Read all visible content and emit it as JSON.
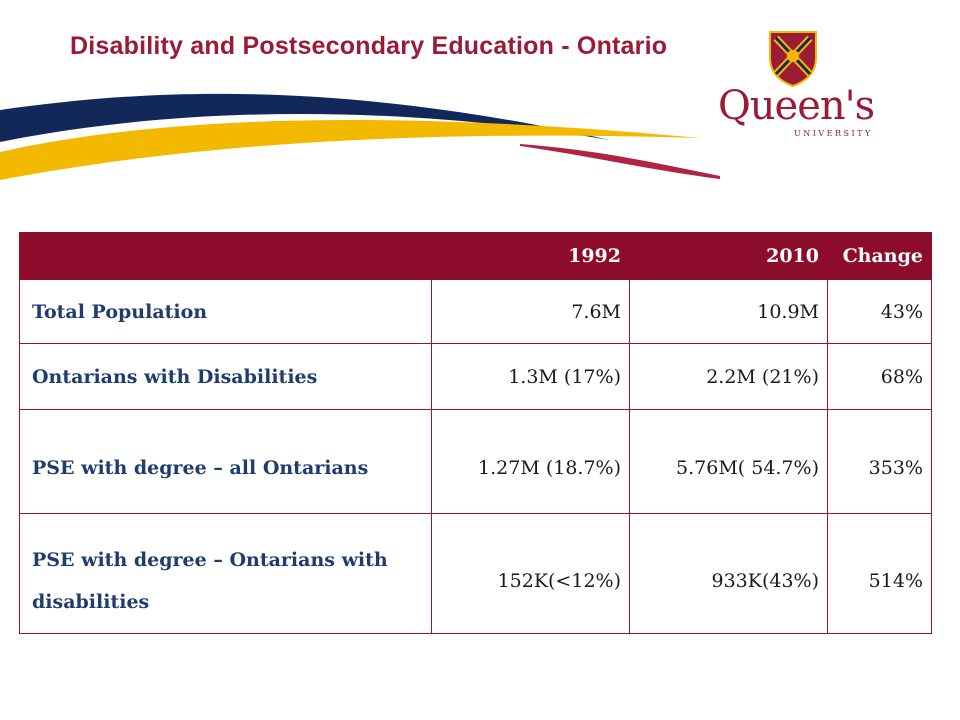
{
  "slide": {
    "title": "Disability and Postsecondary Education - Ontario"
  },
  "logo": {
    "wordmark": "Queen's",
    "subtext": "UNIVERSITY",
    "colors": {
      "red": "#9b1b36",
      "gold": "#f2b900",
      "navy": "#12275a"
    }
  },
  "swoosh_colors": {
    "navy": "#12275a",
    "gold": "#f2b900",
    "red": "#b22242"
  },
  "table": {
    "header": [
      "",
      "1992",
      "2010",
      "Change"
    ],
    "rows": [
      {
        "label": "Total Population",
        "v1992": "7.6M",
        "v2010": "10.9M",
        "change": "43%"
      },
      {
        "label": "Ontarians with Disabilities",
        "v1992": "1.3M (17%)",
        "v2010": "2.2M (21%)",
        "change": "68%"
      },
      {
        "label": "PSE with degree – all Ontarians",
        "v1992": "1.27M (18.7%)",
        "v2010": "5.76M( 54.7%)",
        "change": "353%"
      },
      {
        "label": "PSE with degree – Ontarians with disabilities",
        "v1992": "152K(<12%)",
        "v2010": "933K(43%)",
        "change": "514%"
      }
    ]
  }
}
